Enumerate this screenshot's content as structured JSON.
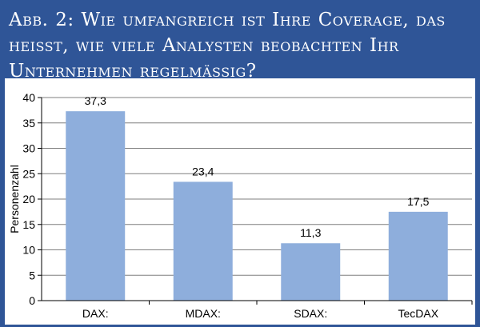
{
  "title": "Abb. 2: Wie umfangreich ist Ihre Coverage, das heisst, wie viele Analysten beobachten Ihr Unternehmen regelmässig?",
  "chart_data": {
    "type": "bar",
    "categories": [
      "DAX:",
      "MDAX:",
      "SDAX:",
      "TecDAX"
    ],
    "values": [
      37.3,
      23.4,
      11.3,
      17.5
    ],
    "data_labels": [
      "37,3",
      "23,4",
      "11,3",
      "17,5"
    ],
    "ylabel": "Personenzahl",
    "ylim": [
      0,
      40
    ],
    "yticks": [
      0,
      5,
      10,
      15,
      20,
      25,
      30,
      35,
      40
    ],
    "grid": true,
    "bar_color": "#8eaedc"
  }
}
